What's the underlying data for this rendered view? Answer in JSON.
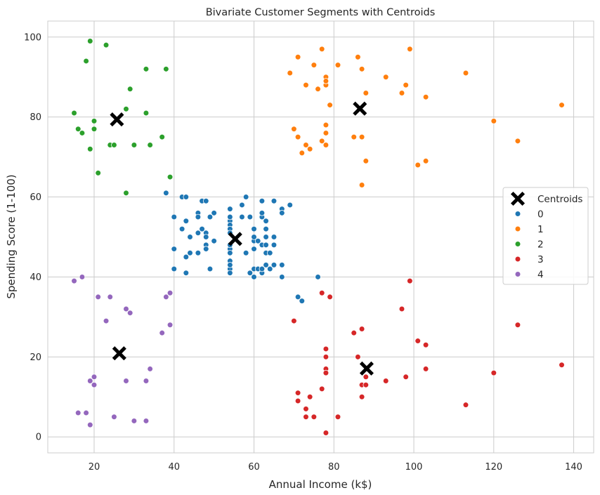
{
  "chart_data": {
    "type": "scatter",
    "title": "Bivariate Customer Segments with Centroids",
    "xlabel": "Annual Income (k$)",
    "ylabel": "Spending Score (1-100)",
    "xlim": [
      8.4,
      145.0
    ],
    "ylim": [
      -4.0,
      104.0
    ],
    "xticks": [
      20,
      40,
      60,
      80,
      100,
      120,
      140
    ],
    "yticks": [
      0,
      20,
      40,
      60,
      80,
      100
    ],
    "grid": true,
    "legend_position": "center-right",
    "legend_title": "",
    "centroid_label": "Centroids",
    "centroid_color": "#000000",
    "series": [
      {
        "name": "0",
        "color": "#1f77b4",
        "points": [
          [
            38,
            61
          ],
          [
            40,
            55
          ],
          [
            40,
            47
          ],
          [
            40,
            42
          ],
          [
            42,
            52
          ],
          [
            42,
            60
          ],
          [
            43,
            60
          ],
          [
            43,
            54
          ],
          [
            43,
            45
          ],
          [
            43,
            41
          ],
          [
            44,
            50
          ],
          [
            44,
            46
          ],
          [
            46,
            51
          ],
          [
            46,
            46
          ],
          [
            46,
            56
          ],
          [
            46,
            55
          ],
          [
            47,
            52
          ],
          [
            47,
            59
          ],
          [
            48,
            59
          ],
          [
            48,
            51
          ],
          [
            48,
            50
          ],
          [
            48,
            48
          ],
          [
            48,
            47
          ],
          [
            49,
            55
          ],
          [
            49,
            42
          ],
          [
            50,
            49
          ],
          [
            50,
            56
          ],
          [
            54,
            47
          ],
          [
            54,
            54
          ],
          [
            54,
            53
          ],
          [
            54,
            48
          ],
          [
            54,
            52
          ],
          [
            54,
            42
          ],
          [
            54,
            51
          ],
          [
            54,
            55
          ],
          [
            54,
            41
          ],
          [
            54,
            44
          ],
          [
            54,
            57
          ],
          [
            54,
            46
          ],
          [
            54,
            43
          ],
          [
            57,
            58
          ],
          [
            57,
            55
          ],
          [
            58,
            60
          ],
          [
            58,
            46
          ],
          [
            59,
            55
          ],
          [
            59,
            41
          ],
          [
            60,
            49
          ],
          [
            60,
            40
          ],
          [
            60,
            42
          ],
          [
            60,
            52
          ],
          [
            60,
            47
          ],
          [
            60,
            50
          ],
          [
            61,
            42
          ],
          [
            61,
            49
          ],
          [
            62,
            41
          ],
          [
            62,
            48
          ],
          [
            62,
            59
          ],
          [
            62,
            55
          ],
          [
            62,
            56
          ],
          [
            62,
            42
          ],
          [
            63,
            50
          ],
          [
            63,
            46
          ],
          [
            63,
            43
          ],
          [
            63,
            48
          ],
          [
            63,
            52
          ],
          [
            63,
            54
          ],
          [
            64,
            42
          ],
          [
            64,
            46
          ],
          [
            65,
            48
          ],
          [
            65,
            50
          ],
          [
            65,
            43
          ],
          [
            65,
            59
          ],
          [
            67,
            43
          ],
          [
            67,
            57
          ],
          [
            67,
            56
          ],
          [
            67,
            40
          ],
          [
            69,
            58
          ],
          [
            71,
            35
          ],
          [
            72,
            34
          ],
          [
            76,
            40
          ]
        ]
      },
      {
        "name": "1",
        "color": "#ff7f0e",
        "points": [
          [
            69,
            91
          ],
          [
            70,
            77
          ],
          [
            71,
            95
          ],
          [
            71,
            75
          ],
          [
            71,
            75
          ],
          [
            72,
            71
          ],
          [
            73,
            88
          ],
          [
            73,
            73
          ],
          [
            74,
            72
          ],
          [
            75,
            93
          ],
          [
            76,
            87
          ],
          [
            77,
            97
          ],
          [
            77,
            74
          ],
          [
            78,
            90
          ],
          [
            78,
            88
          ],
          [
            78,
            76
          ],
          [
            78,
            89
          ],
          [
            78,
            78
          ],
          [
            78,
            73
          ],
          [
            79,
            83
          ],
          [
            81,
            93
          ],
          [
            85,
            75
          ],
          [
            86,
            95
          ],
          [
            87,
            63
          ],
          [
            87,
            75
          ],
          [
            87,
            92
          ],
          [
            88,
            86
          ],
          [
            88,
            69
          ],
          [
            93,
            90
          ],
          [
            97,
            86
          ],
          [
            98,
            88
          ],
          [
            99,
            97
          ],
          [
            101,
            68
          ],
          [
            103,
            85
          ],
          [
            103,
            69
          ],
          [
            113,
            91
          ],
          [
            120,
            79
          ],
          [
            126,
            74
          ],
          [
            137,
            83
          ]
        ]
      },
      {
        "name": "2",
        "color": "#2ca02c",
        "points": [
          [
            15,
            81
          ],
          [
            16,
            77
          ],
          [
            17,
            76
          ],
          [
            18,
            94
          ],
          [
            19,
            72
          ],
          [
            19,
            99
          ],
          [
            20,
            77
          ],
          [
            20,
            79
          ],
          [
            21,
            66
          ],
          [
            23,
            98
          ],
          [
            24,
            73
          ],
          [
            25,
            73
          ],
          [
            28,
            82
          ],
          [
            28,
            61
          ],
          [
            29,
            87
          ],
          [
            30,
            73
          ],
          [
            33,
            92
          ],
          [
            33,
            81
          ],
          [
            34,
            73
          ],
          [
            37,
            75
          ],
          [
            38,
            92
          ],
          [
            39,
            65
          ]
        ]
      },
      {
        "name": "3",
        "color": "#d62728",
        "points": [
          [
            70,
            29
          ],
          [
            71,
            11
          ],
          [
            71,
            9
          ],
          [
            73,
            5
          ],
          [
            73,
            7
          ],
          [
            74,
            10
          ],
          [
            75,
            5
          ],
          [
            77,
            12
          ],
          [
            77,
            36
          ],
          [
            78,
            22
          ],
          [
            78,
            17
          ],
          [
            78,
            20
          ],
          [
            78,
            16
          ],
          [
            78,
            1
          ],
          [
            78,
            1
          ],
          [
            79,
            35
          ],
          [
            81,
            5
          ],
          [
            85,
            26
          ],
          [
            86,
            20
          ],
          [
            87,
            27
          ],
          [
            87,
            13
          ],
          [
            87,
            10
          ],
          [
            88,
            13
          ],
          [
            88,
            15
          ],
          [
            93,
            14
          ],
          [
            97,
            32
          ],
          [
            98,
            15
          ],
          [
            99,
            39
          ],
          [
            101,
            24
          ],
          [
            103,
            17
          ],
          [
            103,
            23
          ],
          [
            113,
            8
          ],
          [
            120,
            16
          ],
          [
            126,
            28
          ],
          [
            137,
            18
          ]
        ]
      },
      {
        "name": "4",
        "color": "#9467bd",
        "points": [
          [
            15,
            39
          ],
          [
            16,
            6
          ],
          [
            17,
            40
          ],
          [
            18,
            6
          ],
          [
            19,
            3
          ],
          [
            19,
            14
          ],
          [
            20,
            15
          ],
          [
            20,
            13
          ],
          [
            21,
            35
          ],
          [
            23,
            29
          ],
          [
            24,
            35
          ],
          [
            25,
            5
          ],
          [
            28,
            14
          ],
          [
            28,
            32
          ],
          [
            29,
            31
          ],
          [
            30,
            4
          ],
          [
            33,
            4
          ],
          [
            33,
            14
          ],
          [
            34,
            17
          ],
          [
            37,
            26
          ],
          [
            38,
            35
          ],
          [
            39,
            36
          ],
          [
            39,
            28
          ]
        ]
      }
    ],
    "centroids": [
      [
        55.3,
        49.5
      ],
      [
        86.5,
        82.1
      ],
      [
        25.7,
        79.4
      ],
      [
        88.2,
        17.1
      ],
      [
        26.3,
        20.9
      ]
    ]
  }
}
